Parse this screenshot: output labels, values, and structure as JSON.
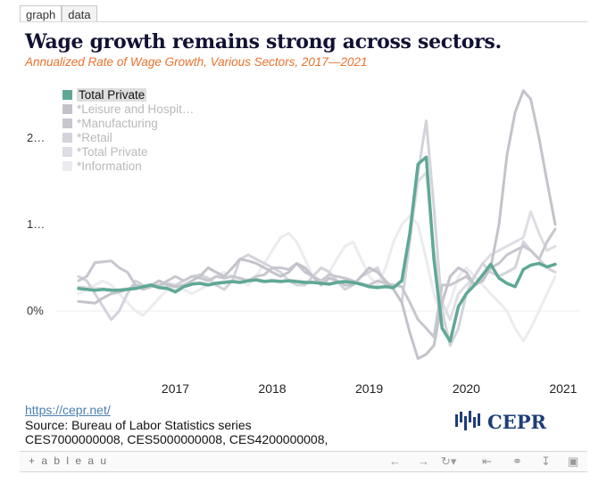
{
  "tabs": [
    "graph",
    "data"
  ],
  "title": "Wage growth remains strong across sectors.",
  "subtitle": "Annualized Rate of Wage Growth, Various Sectors, 2017—2021",
  "chart_data": {
    "type": "line",
    "x_ticks": [
      "2017",
      "2018",
      "2019",
      "2020",
      "2021"
    ],
    "y_ticks": [
      "2…",
      "1…",
      "0%"
    ],
    "ylim": [
      -0.6,
      2.6
    ],
    "legend_position": "top-left",
    "grid": false,
    "x": [
      "2016-07",
      "2016-08",
      "2016-09",
      "2016-10",
      "2016-11",
      "2016-12",
      "2017-01",
      "2017-02",
      "2017-03",
      "2017-04",
      "2017-05",
      "2017-06",
      "2017-07",
      "2017-08",
      "2017-09",
      "2017-10",
      "2017-11",
      "2017-12",
      "2018-01",
      "2018-02",
      "2018-03",
      "2018-04",
      "2018-05",
      "2018-06",
      "2018-07",
      "2018-08",
      "2018-09",
      "2018-10",
      "2018-11",
      "2018-12",
      "2019-01",
      "2019-02",
      "2019-03",
      "2019-04",
      "2019-05",
      "2019-06",
      "2019-07",
      "2019-08",
      "2019-09",
      "2019-10",
      "2019-11",
      "2019-12",
      "2020-01",
      "2020-02",
      "2020-03",
      "2020-04",
      "2020-05",
      "2020-06",
      "2020-07",
      "2020-08",
      "2020-09",
      "2020-10",
      "2020-11",
      "2020-12",
      "2021-01",
      "2021-02",
      "2021-03",
      "2021-04",
      "2021-05",
      "2021-06"
    ],
    "series": [
      {
        "name": "Total Private",
        "color": "#5fa896",
        "width": 3.5,
        "values": [
          0.26,
          0.25,
          0.24,
          0.25,
          0.24,
          0.24,
          0.25,
          0.26,
          0.28,
          0.3,
          0.27,
          0.26,
          0.22,
          0.28,
          0.31,
          0.32,
          0.3,
          0.32,
          0.33,
          0.34,
          0.33,
          0.35,
          0.36,
          0.34,
          0.35,
          0.34,
          0.35,
          0.34,
          0.33,
          0.33,
          0.32,
          0.31,
          0.33,
          0.34,
          0.33,
          0.31,
          0.28,
          0.27,
          0.28,
          0.27,
          0.35,
          0.9,
          1.7,
          1.78,
          0.6,
          -0.2,
          -0.35,
          0.05,
          0.2,
          0.3,
          0.42,
          0.54,
          0.38,
          0.32,
          0.28,
          0.48,
          0.53,
          0.55,
          0.51,
          0.54
        ]
      },
      {
        "name": "*Leisure and Hospit…",
        "color": "#c3c3cb",
        "width": 3,
        "values": [
          0.11,
          0.1,
          0.09,
          0.15,
          0.2,
          0.22,
          0.25,
          0.3,
          0.28,
          0.3,
          0.35,
          0.3,
          0.28,
          0.3,
          0.35,
          0.4,
          0.5,
          0.45,
          0.4,
          0.5,
          0.6,
          0.58,
          0.55,
          0.5,
          0.45,
          0.4,
          0.45,
          0.55,
          0.5,
          0.4,
          0.3,
          0.38,
          0.35,
          0.3,
          0.3,
          0.4,
          0.5,
          0.45,
          0.35,
          0.25,
          0.1,
          -0.25,
          -0.55,
          -0.5,
          -0.4,
          0.1,
          0.4,
          0.5,
          0.45,
          0.3,
          0.35,
          0.5,
          1.0,
          1.8,
          2.3,
          2.55,
          2.45,
          2.0,
          1.5,
          1.0
        ]
      },
      {
        "name": "*Manufacturing",
        "color": "#c7c7cf",
        "width": 3,
        "values": [
          0.35,
          0.4,
          0.56,
          0.57,
          0.58,
          0.5,
          0.45,
          0.3,
          0.25,
          0.28,
          0.3,
          0.35,
          0.4,
          0.35,
          0.4,
          0.38,
          0.35,
          0.4,
          0.38,
          0.4,
          0.38,
          0.35,
          0.4,
          0.42,
          0.5,
          0.5,
          0.48,
          0.55,
          0.45,
          0.4,
          0.35,
          0.42,
          0.4,
          0.38,
          0.35,
          0.3,
          0.3,
          0.35,
          0.32,
          0.3,
          0.28,
          0.1,
          -0.1,
          -0.2,
          -0.3,
          0.3,
          0.3,
          0.35,
          0.4,
          0.3,
          0.4,
          0.5,
          0.55,
          0.65,
          0.7,
          0.75,
          0.7,
          0.6,
          0.8,
          0.95
        ]
      },
      {
        "name": "*Retail",
        "color": "#d3d3db",
        "width": 3,
        "values": [
          0.4,
          0.35,
          0.2,
          0.05,
          -0.1,
          0.0,
          0.2,
          0.35,
          0.3,
          0.28,
          0.3,
          0.32,
          0.3,
          0.35,
          0.4,
          0.42,
          0.38,
          0.3,
          0.25,
          0.35,
          0.6,
          0.65,
          0.6,
          0.55,
          0.5,
          0.45,
          0.35,
          0.3,
          0.3,
          0.4,
          0.5,
          0.45,
          0.35,
          0.25,
          0.3,
          0.4,
          0.45,
          0.5,
          0.3,
          0.25,
          0.1,
          0.8,
          1.6,
          2.2,
          1.2,
          0.0,
          -0.4,
          -0.2,
          0.2,
          0.4,
          0.55,
          0.45,
          0.4,
          0.45,
          0.5,
          0.8,
          0.7,
          0.6,
          0.5,
          0.45
        ]
      },
      {
        "name": "*Total Private",
        "color": "#dedee4",
        "width": 3,
        "values": [
          0.28,
          0.27,
          0.26,
          0.26,
          0.25,
          0.25,
          0.26,
          0.27,
          0.29,
          0.31,
          0.28,
          0.27,
          0.24,
          0.29,
          0.32,
          0.33,
          0.31,
          0.33,
          0.34,
          0.35,
          0.34,
          0.36,
          0.37,
          0.35,
          0.36,
          0.35,
          0.36,
          0.35,
          0.34,
          0.34,
          0.33,
          0.32,
          0.34,
          0.35,
          0.34,
          0.32,
          0.29,
          0.28,
          0.29,
          0.28,
          0.36,
          0.85,
          1.5,
          1.6,
          0.7,
          0.1,
          -0.1,
          0.2,
          0.3,
          0.4,
          0.55,
          0.65,
          0.7,
          0.75,
          0.8,
          0.85,
          1.15,
          0.9,
          0.7,
          0.75
        ]
      },
      {
        "name": "*Information",
        "color": "#ececf0",
        "width": 3,
        "values": [
          0.2,
          0.25,
          0.3,
          0.35,
          0.3,
          0.2,
          0.1,
          0.0,
          -0.05,
          0.05,
          0.15,
          0.25,
          0.3,
          0.25,
          0.2,
          0.25,
          0.3,
          0.4,
          0.45,
          0.4,
          0.35,
          0.3,
          0.4,
          0.55,
          0.7,
          0.85,
          0.9,
          0.8,
          0.6,
          0.4,
          0.3,
          0.45,
          0.6,
          0.75,
          0.8,
          0.6,
          0.4,
          0.3,
          0.5,
          0.8,
          1.0,
          1.1,
          1.0,
          0.6,
          0.2,
          -0.1,
          0.1,
          0.4,
          0.5,
          0.4,
          0.3,
          0.2,
          0.1,
          0.0,
          -0.2,
          -0.35,
          -0.2,
          0.0,
          0.2,
          0.4
        ]
      }
    ]
  },
  "footer": {
    "link": "https://cepr.net/",
    "source_line1": "Source: Bureau of Labor Statistics series",
    "source_line2": "CES7000000008, CES5000000008, CES4200000008,",
    "logo_text": "CEPR",
    "brand": "+ a b l e a u"
  }
}
